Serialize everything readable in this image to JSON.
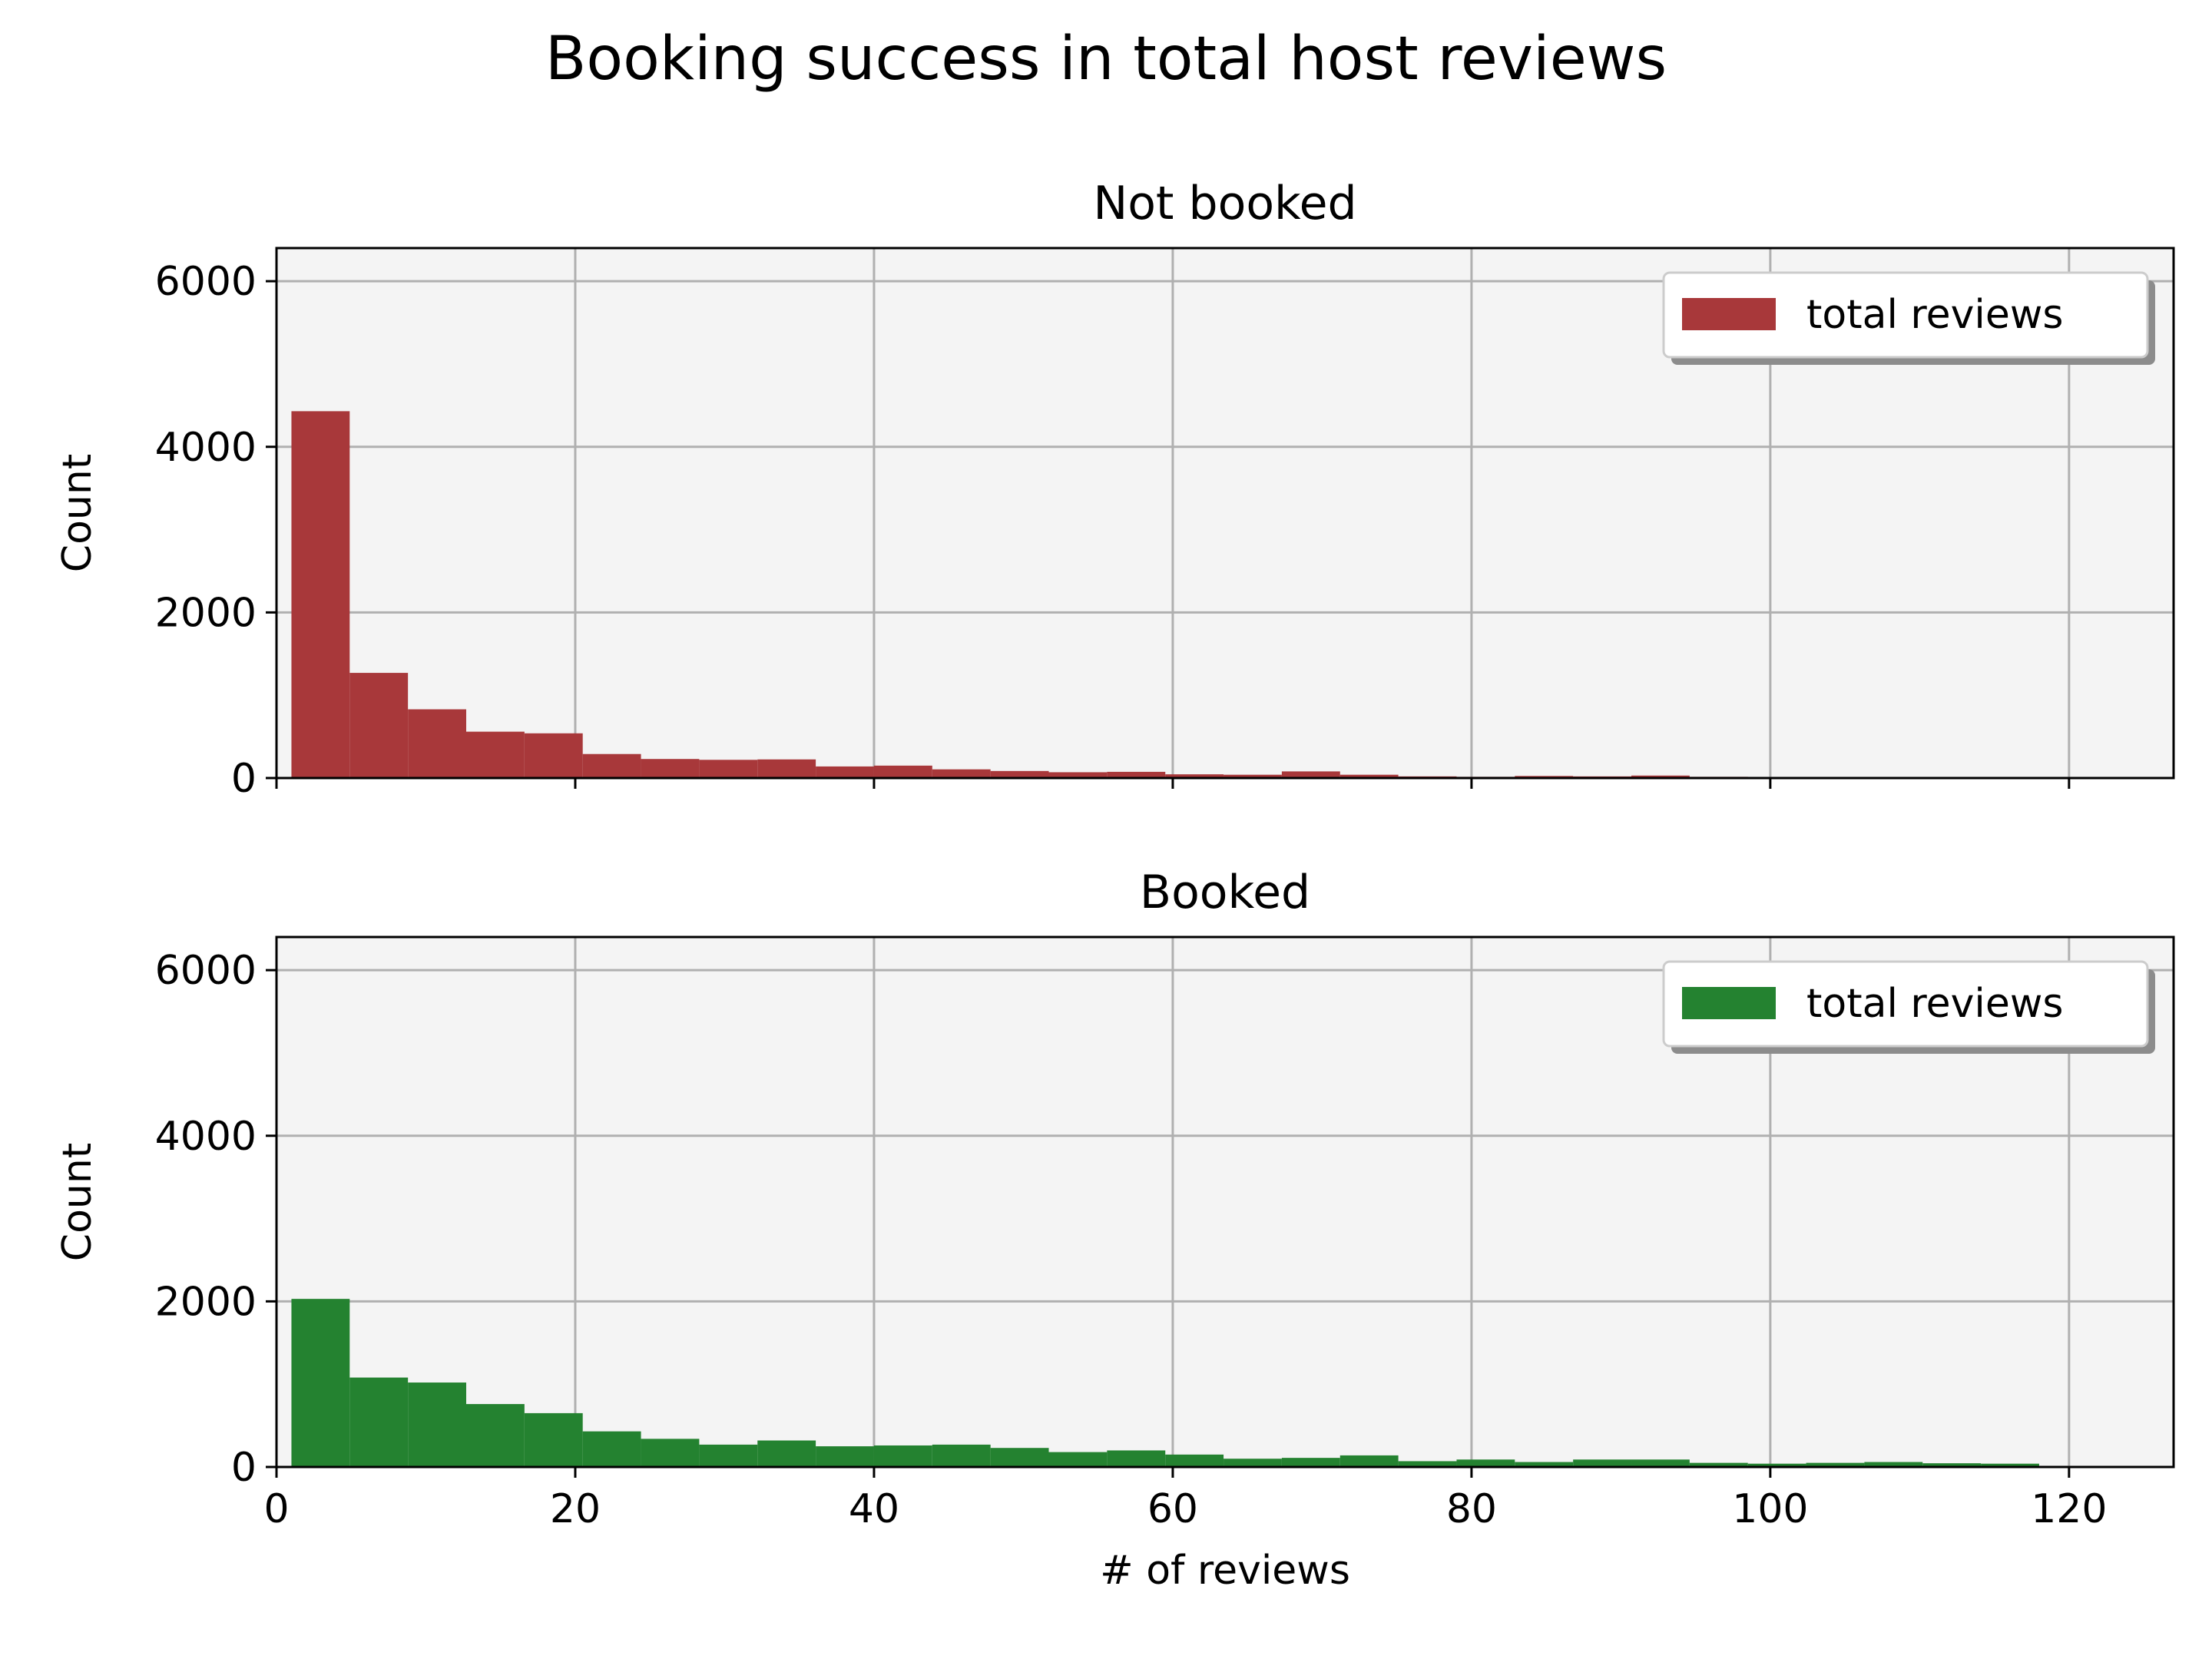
{
  "suptitle": "Booking success in total host reviews",
  "colors": {
    "not_booked": "#a8383a",
    "booked": "#248230",
    "axes_bg": "#f4f4f4",
    "grid": "#b0b0b0"
  },
  "chart_data": [
    {
      "type": "bar",
      "title": "Not booked",
      "ylabel": "Count",
      "xlabel": "",
      "xlim": [
        0,
        127
      ],
      "ylim": [
        0,
        6400
      ],
      "xticks": [
        0,
        20,
        40,
        60,
        80,
        100,
        120
      ],
      "yticks": [
        0,
        2000,
        4000,
        6000
      ],
      "show_xtick_labels": false,
      "grid": true,
      "legend": {
        "label": "total reviews",
        "position": "top-right"
      },
      "bin_edges": [
        1,
        4.9,
        8.8,
        12.7,
        16.6,
        20.5,
        24.4,
        28.3,
        32.2,
        36.1,
        40,
        43.9,
        47.8,
        51.7,
        55.6,
        59.5,
        63.4,
        67.3,
        71.2,
        75.1,
        79,
        82.9,
        86.8,
        90.7,
        94.6,
        98.5,
        102.4,
        106.3,
        110.2,
        114.1,
        118
      ],
      "values": [
        4430,
        1270,
        830,
        560,
        540,
        290,
        230,
        220,
        225,
        140,
        150,
        105,
        85,
        70,
        75,
        45,
        40,
        80,
        40,
        20,
        15,
        25,
        20,
        30,
        15,
        10,
        8,
        6,
        5,
        5
      ]
    },
    {
      "type": "bar",
      "title": "Booked",
      "ylabel": "Count",
      "xlabel": "# of reviews",
      "xlim": [
        0,
        127
      ],
      "ylim": [
        0,
        6400
      ],
      "xticks": [
        0,
        20,
        40,
        60,
        80,
        100,
        120
      ],
      "yticks": [
        0,
        2000,
        4000,
        6000
      ],
      "show_xtick_labels": true,
      "grid": true,
      "legend": {
        "label": "total reviews",
        "position": "top-right"
      },
      "bin_edges": [
        1,
        4.9,
        8.8,
        12.7,
        16.6,
        20.5,
        24.4,
        28.3,
        32.2,
        36.1,
        40,
        43.9,
        47.8,
        51.7,
        55.6,
        59.5,
        63.4,
        67.3,
        71.2,
        75.1,
        79,
        82.9,
        86.8,
        90.7,
        94.6,
        98.5,
        102.4,
        106.3,
        110.2,
        114.1,
        118
      ],
      "values": [
        2030,
        1080,
        1020,
        760,
        650,
        430,
        340,
        270,
        320,
        250,
        260,
        270,
        230,
        180,
        200,
        150,
        100,
        110,
        140,
        70,
        90,
        60,
        90,
        90,
        50,
        40,
        50,
        60,
        45,
        40
      ]
    }
  ]
}
